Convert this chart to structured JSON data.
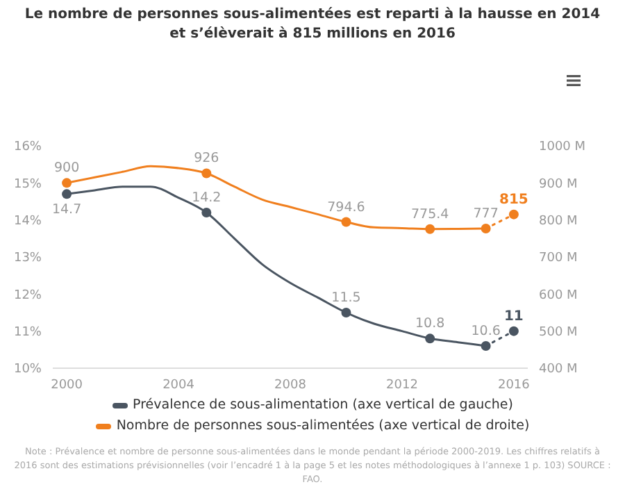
{
  "chart_data": {
    "type": "line",
    "title": "Le nombre de personnes sous-alimentées est reparti à la hausse en 2014\net s’élèverait à 815 millions en 2016",
    "x": [
      2000,
      2001,
      2002,
      2003,
      2004,
      2005,
      2006,
      2007,
      2008,
      2009,
      2010,
      2011,
      2012,
      2013,
      2014,
      2015,
      2016
    ],
    "series": [
      {
        "name": "Prévalence de sous-alimentation (axe vertical de gauche)",
        "color": "#4a5561",
        "values": [
          14.7,
          14.8,
          14.9,
          14.9,
          14.6,
          14.2,
          13.5,
          12.8,
          12.3,
          11.9,
          11.5,
          11.2,
          11.0,
          10.8,
          10.7,
          10.6,
          null
        ],
        "value_labels": [
          "14.7",
          null,
          null,
          null,
          null,
          "14.2",
          null,
          null,
          null,
          null,
          "11.5",
          null,
          null,
          "10.8",
          null,
          "10.6",
          null
        ]
      },
      {
        "color": "#4a5561",
        "line_style": "dotted",
        "values": [
          null,
          null,
          null,
          null,
          null,
          null,
          null,
          null,
          null,
          null,
          null,
          null,
          null,
          null,
          null,
          10.6,
          11
        ],
        "value_labels": [
          null,
          null,
          null,
          null,
          null,
          null,
          null,
          null,
          null,
          null,
          null,
          null,
          null,
          null,
          null,
          null,
          "11"
        ]
      },
      {
        "name": "Nombre de personnes sous-alimentées (axe vertical de droite)",
        "color": "#f07f1e",
        "axis": "y2",
        "values": [
          900,
          915,
          930,
          945,
          940,
          926,
          890,
          855,
          835,
          815,
          794.6,
          780,
          778,
          775.4,
          776,
          777,
          null
        ],
        "value_labels": [
          "900",
          null,
          null,
          null,
          null,
          "926",
          null,
          null,
          null,
          null,
          "794.6",
          null,
          null,
          "775.4",
          null,
          "777",
          null
        ]
      },
      {
        "color": "#f07f1e",
        "axis": "y2",
        "line_style": "dotted",
        "values": [
          null,
          null,
          null,
          null,
          null,
          null,
          null,
          null,
          null,
          null,
          null,
          null,
          null,
          null,
          null,
          777,
          815
        ],
        "value_labels": [
          null,
          null,
          null,
          null,
          null,
          null,
          null,
          null,
          null,
          null,
          null,
          null,
          null,
          null,
          null,
          null,
          "815"
        ]
      }
    ],
    "xlim": [
      1999.5,
      2016.5
    ],
    "xticks": [
      2000,
      2004,
      2008,
      2012,
      2016
    ],
    "ylim": [
      10,
      16
    ],
    "yticks": [
      {
        "value": 10,
        "label": "10%"
      },
      {
        "value": 11,
        "label": "11%"
      },
      {
        "value": 12,
        "label": "12%"
      },
      {
        "value": 13,
        "label": "13%"
      },
      {
        "value": 14,
        "label": "14%"
      },
      {
        "value": 15,
        "label": "15%"
      },
      {
        "value": 16,
        "label": "16%"
      }
    ],
    "y2lim": [
      400,
      1000
    ],
    "y2ticks": [
      {
        "value": 400,
        "label": "400 M"
      },
      {
        "value": 500,
        "label": "500 M"
      },
      {
        "value": 600,
        "label": "600 M"
      },
      {
        "value": 700,
        "label": "700 M"
      },
      {
        "value": 800,
        "label": "800 M"
      },
      {
        "value": 900,
        "label": "900 M"
      },
      {
        "value": 1000,
        "label": "1000 M"
      }
    ],
    "line_style": "solid",
    "grid": false,
    "legend": "bottom",
    "annotations": [
      "Note : Prévalence et nombre de personne sous-alimentées dans le monde pendant la période 2000-2019. Les chiffres relatifs à 2016 sont des estimations prévisionnelles (voir l’encadré 1 à la page 5 et les notes méthodologiques à l’annexe 1 p. 103) SOURCE : FAO."
    ]
  }
}
